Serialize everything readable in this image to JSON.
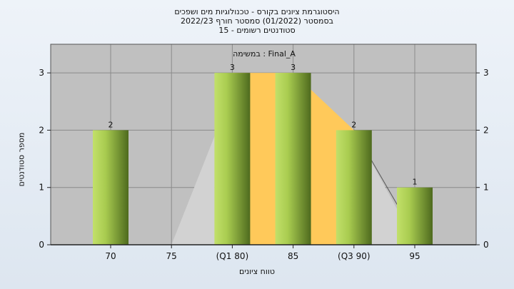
{
  "chart_data": {
    "type": "bar",
    "title_lines": [
      "היסטוגרמת ציונים בקורס - טכנולוגיות מים ושפכים",
      "בסמסטר  (01/2022)  סמסטר חורף  2022/23",
      "סטודנטים רשומים - 15"
    ],
    "annotation": "במשימה : Final_A",
    "xlabel": "טווח ציונים",
    "ylabel": "מספר סטודנטים",
    "categories": [
      "70",
      "75",
      "(Q1 80)",
      "85",
      "(Q3 90)",
      "95"
    ],
    "values": [
      2,
      0,
      3,
      3,
      2,
      1
    ],
    "data_labels": [
      "2",
      "",
      "3",
      "3",
      "2",
      "1"
    ],
    "yticks": [
      "0",
      "1",
      "2",
      "3"
    ],
    "ylim": [
      0,
      3.5
    ],
    "grid": true,
    "box_plot": {
      "q1_category": "(Q1 80)",
      "q3_category": "(Q3 90)"
    },
    "colors": {
      "plot_bg": "#c0c0c0",
      "bar_light": "#c2e06a",
      "bar_dark": "#4e6a1e",
      "iqr_band": "#ffc95a",
      "whisker_area": "#d2d2d2",
      "grid": "#8a8a8a"
    }
  }
}
